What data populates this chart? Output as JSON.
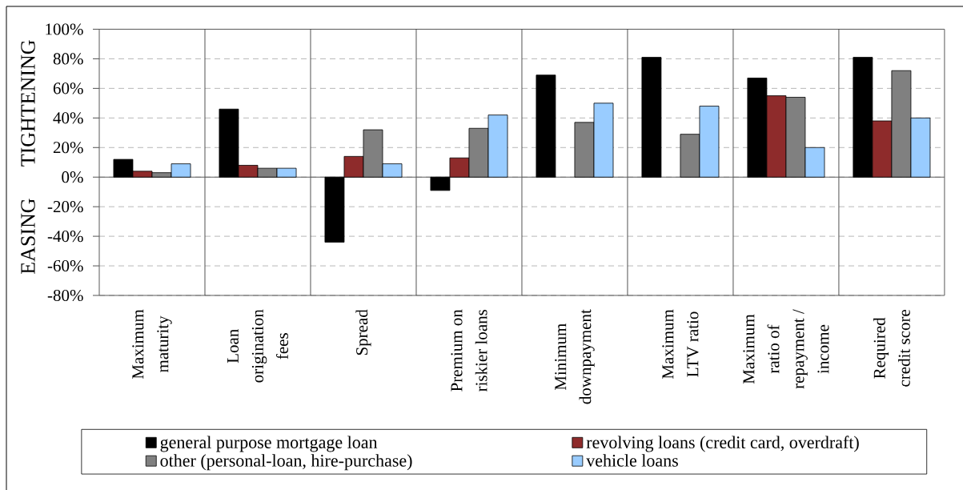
{
  "chart_data": {
    "type": "bar",
    "categories": [
      "Maximum maturity",
      "Loan origination fees",
      "Spread",
      "Premium on riskier loans",
      "Minimum downpayment",
      "Maximum LTV ratio",
      "Maximum ratio of repayment / income",
      "Required credit score"
    ],
    "series": [
      {
        "name": "general purpose mortgage loan",
        "color": "#000000",
        "values": [
          12,
          46,
          -44,
          -9,
          69,
          81,
          67,
          81
        ]
      },
      {
        "name": "revolving loans (credit card, overdraft)",
        "color": "#8e2b2b",
        "values": [
          4,
          8,
          14,
          13,
          null,
          null,
          55,
          38
        ]
      },
      {
        "name": "other (personal-loan, hire-purchase)",
        "color": "#808080",
        "values": [
          3,
          6,
          32,
          33,
          37,
          29,
          54,
          72
        ]
      },
      {
        "name": "vehicle loans",
        "color": "#99ccff",
        "values": [
          9,
          6,
          9,
          42,
          50,
          48,
          20,
          40
        ]
      }
    ],
    "ylim": [
      -80,
      100
    ],
    "yticks": [
      {
        "value": -80,
        "label": "-80%"
      },
      {
        "value": -60,
        "label": "-60%"
      },
      {
        "value": -40,
        "label": "-40%"
      },
      {
        "value": -20,
        "label": "-20%"
      },
      {
        "value": 0,
        "label": "0%"
      },
      {
        "value": 20,
        "label": "20%"
      },
      {
        "value": 40,
        "label": "40%"
      },
      {
        "value": 60,
        "label": "60%"
      },
      {
        "value": 80,
        "label": "80%"
      },
      {
        "value": 100,
        "label": "100%"
      }
    ],
    "grid": true,
    "legend": "bottom",
    "annotations": [
      "TIGHTENING",
      "EASING"
    ]
  }
}
